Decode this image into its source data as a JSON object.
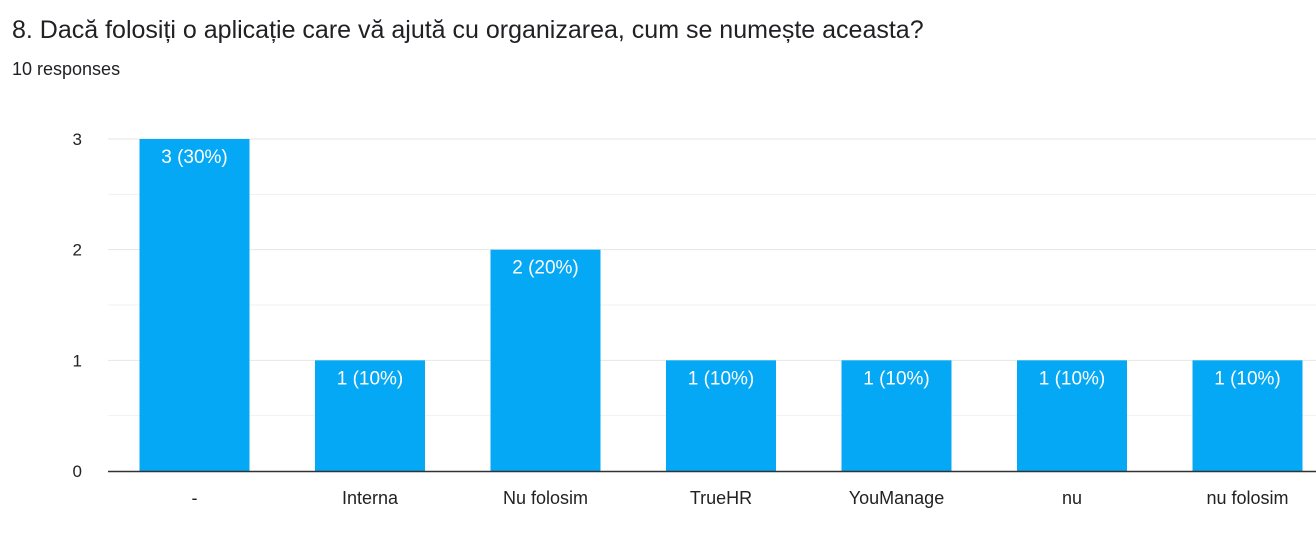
{
  "form": {
    "question_title": "8. Dacă folosiți o aplicație care vă ajută cu organizarea, cum se numește aceasta?",
    "responses_text": "10 responses"
  },
  "colors": {
    "bar": "#05a8f5",
    "grid": "#e6e6e6",
    "axis": "#333333"
  },
  "chart_data": {
    "type": "bar",
    "title": "",
    "xlabel": "",
    "ylabel": "",
    "ylim": [
      0,
      3
    ],
    "yticks": [
      0,
      1,
      2,
      3
    ],
    "grid": true,
    "categories": [
      "-",
      "Interna",
      "Nu folosim",
      "TrueHR",
      "YouManage",
      "nu",
      "nu folosim"
    ],
    "values": [
      3,
      1,
      2,
      1,
      1,
      1,
      1
    ],
    "data_labels": [
      "3 (30%)",
      "1 (10%)",
      "2 (20%)",
      "1 (10%)",
      "1 (10%)",
      "1 (10%)",
      "1 (10%)"
    ]
  }
}
